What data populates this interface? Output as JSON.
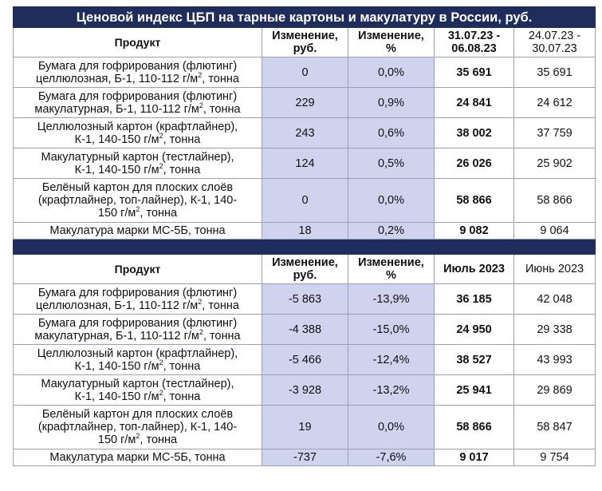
{
  "title": "Ценовой индекс ЦБП на тарные картоны и макулатуру в России, руб.",
  "table1": {
    "headers": {
      "product": "Продукт",
      "change_rub": "Изменение, руб.",
      "change_pct": "Изменение, %",
      "current": "31.07.23 - 06.08.23",
      "previous": "24.07.23 - 30.07.23"
    },
    "rows": [
      {
        "p1": "Бумага для гофрирования (флютинг)",
        "p2": "целлюлозная, Б-1, 110-112 г/м",
        "p3": ", тонна",
        "ch_rub": "0",
        "ch_pct": "0,0%",
        "cur": "35 691",
        "prev": "35 691"
      },
      {
        "p1": "Бумага для гофрирования (флютинг)",
        "p2": "макулатурная, Б-1, 110-112 г/м",
        "p3": ", тонна",
        "ch_rub": "229",
        "ch_pct": "0,9%",
        "cur": "24 841",
        "prev": "24 612"
      },
      {
        "p1": "Целлюлозный картон (крафтлайнер),",
        "p2": "К-1, 140-150 г/м",
        "p3": ", тонна",
        "ch_rub": "243",
        "ch_pct": "0,6%",
        "cur": "38 002",
        "prev": "37 759"
      },
      {
        "p1": "Макулатурный картон (тестлайнер),",
        "p2": "К-1, 140-150 г/м",
        "p3": ", тонна",
        "ch_rub": "124",
        "ch_pct": "0,5%",
        "cur": "26 026",
        "prev": "25 902"
      },
      {
        "p1": "Белёный картон для плоских слоёв",
        "p2": "(крафтлайнер, топ-лайнер), К-1, 140-",
        "p3": "150 г/м",
        "p4": ", тонна",
        "ch_rub": "0",
        "ch_pct": "0,0%",
        "cur": "58 866",
        "prev": "58 866"
      },
      {
        "p1": "Макулатура марки МС-5Б, тонна",
        "ch_rub": "18",
        "ch_pct": "0,2%",
        "cur": "9 082",
        "prev": "9 064"
      }
    ]
  },
  "table2": {
    "headers": {
      "product": "Продукт",
      "change_rub": "Изменение, руб.",
      "change_pct": "Изменение, %",
      "current": "Июль 2023",
      "previous": "Июнь 2023"
    },
    "rows": [
      {
        "p1": "Бумага для гофрирования (флютинг)",
        "p2": "целлюлозная, Б-1, 110-112 г/м",
        "p3": ", тонна",
        "ch_rub": "-5 863",
        "ch_pct": "-13,9%",
        "cur": "36 185",
        "prev": "42 048"
      },
      {
        "p1": "Бумага для гофрирования (флютинг)",
        "p2": "макулатурная, Б-1, 110-112 г/м",
        "p3": ", тонна",
        "ch_rub": "-4 388",
        "ch_pct": "-15,0%",
        "cur": "24 950",
        "prev": "29 338"
      },
      {
        "p1": "Целлюлозный картон (крафтлайнер),",
        "p2": "К-1, 140-150 г/м",
        "p3": ", тонна",
        "ch_rub": "-5 466",
        "ch_pct": "-12,4%",
        "cur": "38 527",
        "prev": "43 993"
      },
      {
        "p1": "Макулатурный картон (тестлайнер),",
        "p2": "К-1, 140-150 г/м",
        "p3": ", тонна",
        "ch_rub": "-3 928",
        "ch_pct": "-13,2%",
        "cur": "25 941",
        "prev": "29 869"
      },
      {
        "p1": "Белёный картон для плоских слоёв",
        "p2": "(крафтлайнер, топ-лайнер), К-1, 140-",
        "p3": "150 г/м",
        "p4": ", тонна",
        "ch_rub": "19",
        "ch_pct": "0,0%",
        "cur": "58 866",
        "prev": "58 847"
      },
      {
        "p1": "Макулатура марки МС-5Б, тонна",
        "ch_rub": "-737",
        "ch_pct": "-7,6%",
        "cur": "9 017",
        "prev": "9 754"
      }
    ]
  },
  "superscript": "2",
  "colors": {
    "header_bg": "#1f2d5c",
    "shade": "#cfd3ee"
  }
}
